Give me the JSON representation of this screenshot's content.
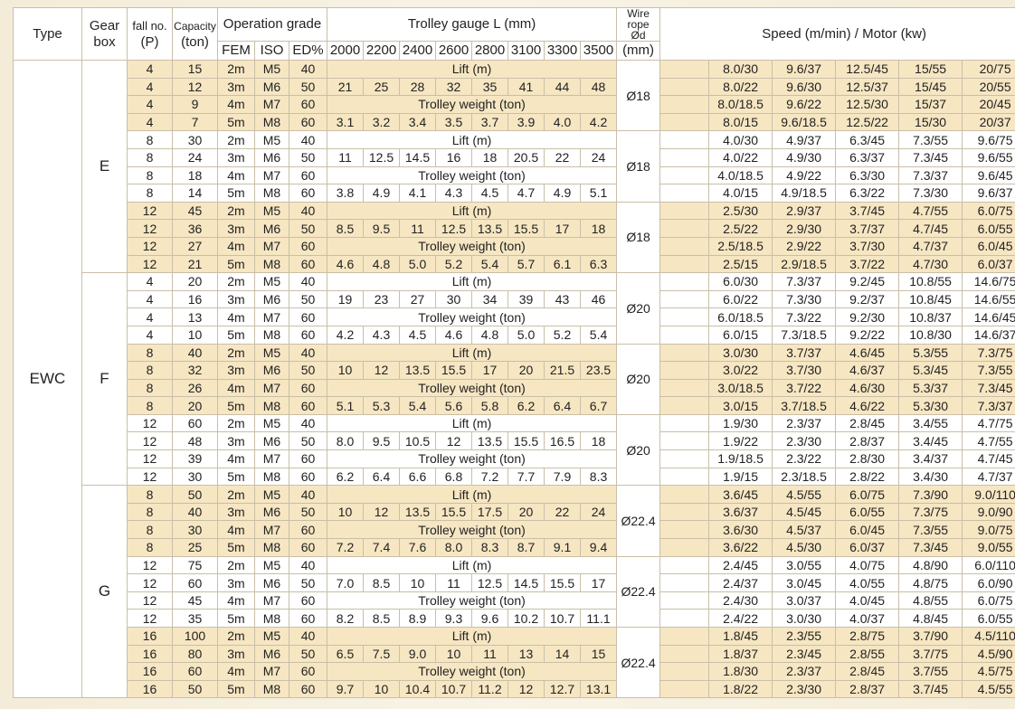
{
  "headers": {
    "type": "Type",
    "gearbox_line1": "Gear",
    "gearbox_line2": "box",
    "fallno_line1": "fall no.",
    "fallno_line2": "(P)",
    "capacity_line1": "Capacity",
    "capacity_line2": "(ton)",
    "operation_grade": "Operation grade",
    "fem": "FEM",
    "iso": "ISO",
    "ed": "ED%",
    "trolley_gauge": "Trolley gauge L (mm)",
    "gauges": [
      "2000",
      "2200",
      "2400",
      "2600",
      "2800",
      "3100",
      "3300",
      "3500"
    ],
    "wire_rope_line1": "Wire",
    "wire_rope_line2": "rope",
    "wire_rope_line3": "Ød",
    "wire_rope_unit": "(mm)",
    "speed_motor": "Speed (m/min) / Motor (kw)"
  },
  "type_label": "EWC",
  "gearboxes": [
    "E",
    "F",
    "G"
  ],
  "lift_label": "Lift (m)",
  "trolley_weight_label": "Trolley weight (ton)",
  "groups": [
    {
      "gear": "E",
      "rope": "Ø18",
      "lift": [
        "21",
        "25",
        "28",
        "32",
        "35",
        "41",
        "44",
        "48"
      ],
      "weight": [
        "3.1",
        "3.2",
        "3.4",
        "3.5",
        "3.7",
        "3.9",
        "4.0",
        "4.2"
      ],
      "rows": [
        {
          "p": "4",
          "cap": "15",
          "fem": "2m",
          "iso": "M5",
          "ed": "40",
          "speeds": [
            "8.0/30",
            "9.6/37",
            "12.5/45",
            "15/55",
            "20/75"
          ]
        },
        {
          "p": "4",
          "cap": "12",
          "fem": "3m",
          "iso": "M6",
          "ed": "50",
          "speeds": [
            "8.0/22",
            "9.6/30",
            "12.5/37",
            "15/45",
            "20/55"
          ]
        },
        {
          "p": "4",
          "cap": "9",
          "fem": "4m",
          "iso": "M7",
          "ed": "60",
          "speeds": [
            "8.0/18.5",
            "9.6/22",
            "12.5/30",
            "15/37",
            "20/45"
          ]
        },
        {
          "p": "4",
          "cap": "7",
          "fem": "5m",
          "iso": "M8",
          "ed": "60",
          "speeds": [
            "8.0/15",
            "9.6/18.5",
            "12.5/22",
            "15/30",
            "20/37"
          ]
        }
      ]
    },
    {
      "gear": "E",
      "rope": "Ø18",
      "lift": [
        "11",
        "12.5",
        "14.5",
        "16",
        "18",
        "20.5",
        "22",
        "24"
      ],
      "weight": [
        "3.8",
        "4.9",
        "4.1",
        "4.3",
        "4.5",
        "4.7",
        "4.9",
        "5.1"
      ],
      "rows": [
        {
          "p": "8",
          "cap": "30",
          "fem": "2m",
          "iso": "M5",
          "ed": "40",
          "speeds": [
            "4.0/30",
            "4.9/37",
            "6.3/45",
            "7.3/55",
            "9.6/75"
          ]
        },
        {
          "p": "8",
          "cap": "24",
          "fem": "3m",
          "iso": "M6",
          "ed": "50",
          "speeds": [
            "4.0/22",
            "4.9/30",
            "6.3/37",
            "7.3/45",
            "9.6/55"
          ]
        },
        {
          "p": "8",
          "cap": "18",
          "fem": "4m",
          "iso": "M7",
          "ed": "60",
          "speeds": [
            "4.0/18.5",
            "4.9/22",
            "6.3/30",
            "7.3/37",
            "9.6/45"
          ]
        },
        {
          "p": "8",
          "cap": "14",
          "fem": "5m",
          "iso": "M8",
          "ed": "60",
          "speeds": [
            "4.0/15",
            "4.9/18.5",
            "6.3/22",
            "7.3/30",
            "9.6/37"
          ]
        }
      ]
    },
    {
      "gear": "E",
      "rope": "Ø18",
      "lift": [
        "8.5",
        "9.5",
        "11",
        "12.5",
        "13.5",
        "15.5",
        "17",
        "18"
      ],
      "weight": [
        "4.6",
        "4.8",
        "5.0",
        "5.2",
        "5.4",
        "5.7",
        "6.1",
        "6.3"
      ],
      "rows": [
        {
          "p": "12",
          "cap": "45",
          "fem": "2m",
          "iso": "M5",
          "ed": "40",
          "speeds": [
            "2.5/30",
            "2.9/37",
            "3.7/45",
            "4.7/55",
            "6.0/75"
          ]
        },
        {
          "p": "12",
          "cap": "36",
          "fem": "3m",
          "iso": "M6",
          "ed": "50",
          "speeds": [
            "2.5/22",
            "2.9/30",
            "3.7/37",
            "4.7/45",
            "6.0/55"
          ]
        },
        {
          "p": "12",
          "cap": "27",
          "fem": "4m",
          "iso": "M7",
          "ed": "60",
          "speeds": [
            "2.5/18.5",
            "2.9/22",
            "3.7/30",
            "4.7/37",
            "6.0/45"
          ]
        },
        {
          "p": "12",
          "cap": "21",
          "fem": "5m",
          "iso": "M8",
          "ed": "60",
          "speeds": [
            "2.5/15",
            "2.9/18.5",
            "3.7/22",
            "4.7/30",
            "6.0/37"
          ]
        }
      ]
    },
    {
      "gear": "F",
      "rope": "Ø20",
      "lift": [
        "19",
        "23",
        "27",
        "30",
        "34",
        "39",
        "43",
        "46"
      ],
      "weight": [
        "4.2",
        "4.3",
        "4.5",
        "4.6",
        "4.8",
        "5.0",
        "5.2",
        "5.4"
      ],
      "rows": [
        {
          "p": "4",
          "cap": "20",
          "fem": "2m",
          "iso": "M5",
          "ed": "40",
          "speeds": [
            "6.0/30",
            "7.3/37",
            "9.2/45",
            "10.8/55",
            "14.6/75"
          ]
        },
        {
          "p": "4",
          "cap": "16",
          "fem": "3m",
          "iso": "M6",
          "ed": "50",
          "speeds": [
            "6.0/22",
            "7.3/30",
            "9.2/37",
            "10.8/45",
            "14.6/55"
          ]
        },
        {
          "p": "4",
          "cap": "13",
          "fem": "4m",
          "iso": "M7",
          "ed": "60",
          "speeds": [
            "6.0/18.5",
            "7.3/22",
            "9.2/30",
            "10.8/37",
            "14.6/45"
          ]
        },
        {
          "p": "4",
          "cap": "10",
          "fem": "5m",
          "iso": "M8",
          "ed": "60",
          "speeds": [
            "6.0/15",
            "7.3/18.5",
            "9.2/22",
            "10.8/30",
            "14.6/37"
          ]
        }
      ]
    },
    {
      "gear": "F",
      "rope": "Ø20",
      "lift": [
        "10",
        "12",
        "13.5",
        "15.5",
        "17",
        "20",
        "21.5",
        "23.5"
      ],
      "weight": [
        "5.1",
        "5.3",
        "5.4",
        "5.6",
        "5.8",
        "6.2",
        "6.4",
        "6.7"
      ],
      "rows": [
        {
          "p": "8",
          "cap": "40",
          "fem": "2m",
          "iso": "M5",
          "ed": "40",
          "speeds": [
            "3.0/30",
            "3.7/37",
            "4.6/45",
            "5.3/55",
            "7.3/75"
          ]
        },
        {
          "p": "8",
          "cap": "32",
          "fem": "3m",
          "iso": "M6",
          "ed": "50",
          "speeds": [
            "3.0/22",
            "3.7/30",
            "4.6/37",
            "5.3/45",
            "7.3/55"
          ]
        },
        {
          "p": "8",
          "cap": "26",
          "fem": "4m",
          "iso": "M7",
          "ed": "60",
          "speeds": [
            "3.0/18.5",
            "3.7/22",
            "4.6/30",
            "5.3/37",
            "7.3/45"
          ]
        },
        {
          "p": "8",
          "cap": "20",
          "fem": "5m",
          "iso": "M8",
          "ed": "60",
          "speeds": [
            "3.0/15",
            "3.7/18.5",
            "4.6/22",
            "5.3/30",
            "7.3/37"
          ]
        }
      ]
    },
    {
      "gear": "F",
      "rope": "Ø20",
      "lift": [
        "8.0",
        "9.5",
        "10.5",
        "12",
        "13.5",
        "15.5",
        "16.5",
        "18"
      ],
      "weight": [
        "6.2",
        "6.4",
        "6.6",
        "6.8",
        "7.2",
        "7.7",
        "7.9",
        "8.3"
      ],
      "rows": [
        {
          "p": "12",
          "cap": "60",
          "fem": "2m",
          "iso": "M5",
          "ed": "40",
          "speeds": [
            "1.9/30",
            "2.3/37",
            "2.8/45",
            "3.4/55",
            "4.7/75"
          ]
        },
        {
          "p": "12",
          "cap": "48",
          "fem": "3m",
          "iso": "M6",
          "ed": "50",
          "speeds": [
            "1.9/22",
            "2.3/30",
            "2.8/37",
            "3.4/45",
            "4.7/55"
          ]
        },
        {
          "p": "12",
          "cap": "39",
          "fem": "4m",
          "iso": "M7",
          "ed": "60",
          "speeds": [
            "1.9/18.5",
            "2.3/22",
            "2.8/30",
            "3.4/37",
            "4.7/45"
          ]
        },
        {
          "p": "12",
          "cap": "30",
          "fem": "5m",
          "iso": "M8",
          "ed": "60",
          "speeds": [
            "1.9/15",
            "2.3/18.5",
            "2.8/22",
            "3.4/30",
            "4.7/37"
          ]
        }
      ]
    },
    {
      "gear": "G",
      "rope": "Ø22.4",
      "lift": [
        "10",
        "12",
        "13.5",
        "15.5",
        "17.5",
        "20",
        "22",
        "24"
      ],
      "weight": [
        "7.2",
        "7.4",
        "7.6",
        "8.0",
        "8.3",
        "8.7",
        "9.1",
        "9.4"
      ],
      "rows": [
        {
          "p": "8",
          "cap": "50",
          "fem": "2m",
          "iso": "M5",
          "ed": "40",
          "speeds": [
            "3.6/45",
            "4.5/55",
            "6.0/75",
            "7.3/90",
            "9.0/110"
          ]
        },
        {
          "p": "8",
          "cap": "40",
          "fem": "3m",
          "iso": "M6",
          "ed": "50",
          "speeds": [
            "3.6/37",
            "4.5/45",
            "6.0/55",
            "7.3/75",
            "9.0/90"
          ]
        },
        {
          "p": "8",
          "cap": "30",
          "fem": "4m",
          "iso": "M7",
          "ed": "60",
          "speeds": [
            "3.6/30",
            "4.5/37",
            "6.0/45",
            "7.3/55",
            "9.0/75"
          ]
        },
        {
          "p": "8",
          "cap": "25",
          "fem": "5m",
          "iso": "M8",
          "ed": "60",
          "speeds": [
            "3.6/22",
            "4.5/30",
            "6.0/37",
            "7.3/45",
            "9.0/55"
          ]
        }
      ]
    },
    {
      "gear": "G",
      "rope": "Ø22.4",
      "lift": [
        "7.0",
        "8.5",
        "10",
        "11",
        "12.5",
        "14.5",
        "15.5",
        "17"
      ],
      "weight": [
        "8.2",
        "8.5",
        "8.9",
        "9.3",
        "9.6",
        "10.2",
        "10.7",
        "11.1"
      ],
      "rows": [
        {
          "p": "12",
          "cap": "75",
          "fem": "2m",
          "iso": "M5",
          "ed": "40",
          "speeds": [
            "2.4/45",
            "3.0/55",
            "4.0/75",
            "4.8/90",
            "6.0/110"
          ]
        },
        {
          "p": "12",
          "cap": "60",
          "fem": "3m",
          "iso": "M6",
          "ed": "50",
          "speeds": [
            "2.4/37",
            "3.0/45",
            "4.0/55",
            "4.8/75",
            "6.0/90"
          ]
        },
        {
          "p": "12",
          "cap": "45",
          "fem": "4m",
          "iso": "M7",
          "ed": "60",
          "speeds": [
            "2.4/30",
            "3.0/37",
            "4.0/45",
            "4.8/55",
            "6.0/75"
          ]
        },
        {
          "p": "12",
          "cap": "35",
          "fem": "5m",
          "iso": "M8",
          "ed": "60",
          "speeds": [
            "2.4/22",
            "3.0/30",
            "4.0/37",
            "4.8/45",
            "6.0/55"
          ]
        }
      ]
    },
    {
      "gear": "G",
      "rope": "Ø22.4",
      "lift": [
        "6.5",
        "7.5",
        "9.0",
        "10",
        "11",
        "13",
        "14",
        "15"
      ],
      "weight": [
        "9.7",
        "10",
        "10.4",
        "10.7",
        "11.2",
        "12",
        "12.7",
        "13.1"
      ],
      "rows": [
        {
          "p": "16",
          "cap": "100",
          "fem": "2m",
          "iso": "M5",
          "ed": "40",
          "speeds": [
            "1.8/45",
            "2.3/55",
            "2.8/75",
            "3.7/90",
            "4.5/110"
          ]
        },
        {
          "p": "16",
          "cap": "80",
          "fem": "3m",
          "iso": "M6",
          "ed": "50",
          "speeds": [
            "1.8/37",
            "2.3/45",
            "2.8/55",
            "3.7/75",
            "4.5/90"
          ]
        },
        {
          "p": "16",
          "cap": "60",
          "fem": "4m",
          "iso": "M7",
          "ed": "60",
          "speeds": [
            "1.8/30",
            "2.3/37",
            "2.8/45",
            "3.7/55",
            "4.5/75"
          ]
        },
        {
          "p": "16",
          "cap": "50",
          "fem": "5m",
          "iso": "M8",
          "ed": "60",
          "speeds": [
            "1.8/22",
            "2.3/30",
            "2.8/37",
            "3.7/45",
            "4.5/55"
          ]
        }
      ]
    }
  ],
  "highlight_groups": [
    0,
    2,
    4,
    6,
    8
  ]
}
